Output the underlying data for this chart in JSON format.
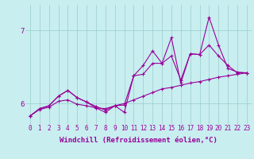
{
  "title": "",
  "xlabel": "Windchill (Refroidissement éolien,°C)",
  "background_color": "#c8eef0",
  "line_color": "#990099",
  "grid_color": "#99cccc",
  "xmin": -0.5,
  "xmax": 23.5,
  "ymin": 5.72,
  "ymax": 7.35,
  "yticks": [
    6,
    7
  ],
  "xticks": [
    0,
    1,
    2,
    3,
    4,
    5,
    6,
    7,
    8,
    9,
    10,
    11,
    12,
    13,
    14,
    15,
    16,
    17,
    18,
    19,
    20,
    21,
    22,
    23
  ],
  "line1_x": [
    0,
    1,
    2,
    3,
    4,
    5,
    6,
    7,
    8,
    9,
    10,
    11,
    12,
    13,
    14,
    15,
    16,
    17,
    18,
    19,
    20,
    21,
    22,
    23
  ],
  "line1_y": [
    5.83,
    5.92,
    5.95,
    6.03,
    6.05,
    5.99,
    5.97,
    5.94,
    5.93,
    5.97,
    6.0,
    6.05,
    6.1,
    6.15,
    6.2,
    6.22,
    6.25,
    6.28,
    6.3,
    6.33,
    6.36,
    6.38,
    6.4,
    6.42
  ],
  "line2_x": [
    0,
    1,
    2,
    3,
    4,
    5,
    6,
    7,
    8,
    9,
    10,
    11,
    12,
    13,
    14,
    15,
    16,
    17,
    18,
    19,
    20,
    21,
    22,
    23
  ],
  "line2_y": [
    5.83,
    5.93,
    5.97,
    6.1,
    6.18,
    6.08,
    6.02,
    5.96,
    5.91,
    5.97,
    5.98,
    6.38,
    6.4,
    6.55,
    6.55,
    6.65,
    6.32,
    6.68,
    6.67,
    6.8,
    6.65,
    6.52,
    6.42,
    6.42
  ],
  "line3_x": [
    0,
    1,
    2,
    3,
    4,
    5,
    6,
    7,
    8,
    9,
    10,
    11,
    12,
    13,
    14,
    15,
    16,
    17,
    18,
    19,
    20,
    21,
    22,
    23
  ],
  "line3_y": [
    5.83,
    5.93,
    5.97,
    6.1,
    6.18,
    6.08,
    6.02,
    5.94,
    5.88,
    5.97,
    5.88,
    6.38,
    6.52,
    6.72,
    6.55,
    6.9,
    6.28,
    6.68,
    6.67,
    7.18,
    6.8,
    6.48,
    6.43,
    6.42
  ],
  "marker": "+",
  "markersize": 3,
  "linewidth": 0.8,
  "label_fontsize": 6.5,
  "tick_fontsize": 5.5
}
